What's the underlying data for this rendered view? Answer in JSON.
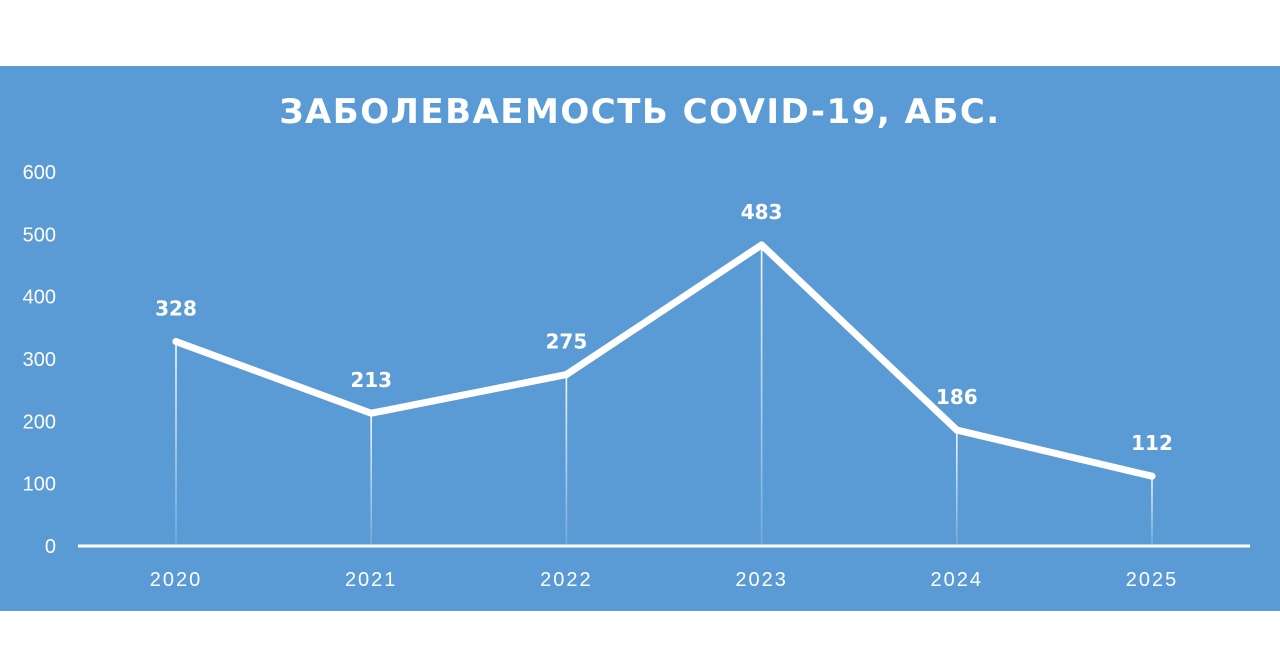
{
  "chart_data": {
    "type": "line",
    "title": "ЗАБОЛЕВАЕМОСТЬ COVID-19, АБС.",
    "categories": [
      "2020",
      "2021",
      "2022",
      "2023",
      "2024",
      "2025"
    ],
    "values": [
      328,
      213,
      275,
      483,
      186,
      112
    ],
    "data_labels": [
      "328",
      "213",
      "275",
      "483",
      "186",
      "112"
    ],
    "y_ticks": [
      "0",
      "100",
      "200",
      "300",
      "400",
      "500",
      "600"
    ],
    "ylim": [
      0,
      600
    ],
    "grid": false,
    "drop_lines": true,
    "legend": "none",
    "xlabel": "",
    "ylabel": ""
  },
  "colors": {
    "background": "#5b9bd5",
    "line": "#ffffff",
    "text": "#ffffff"
  }
}
